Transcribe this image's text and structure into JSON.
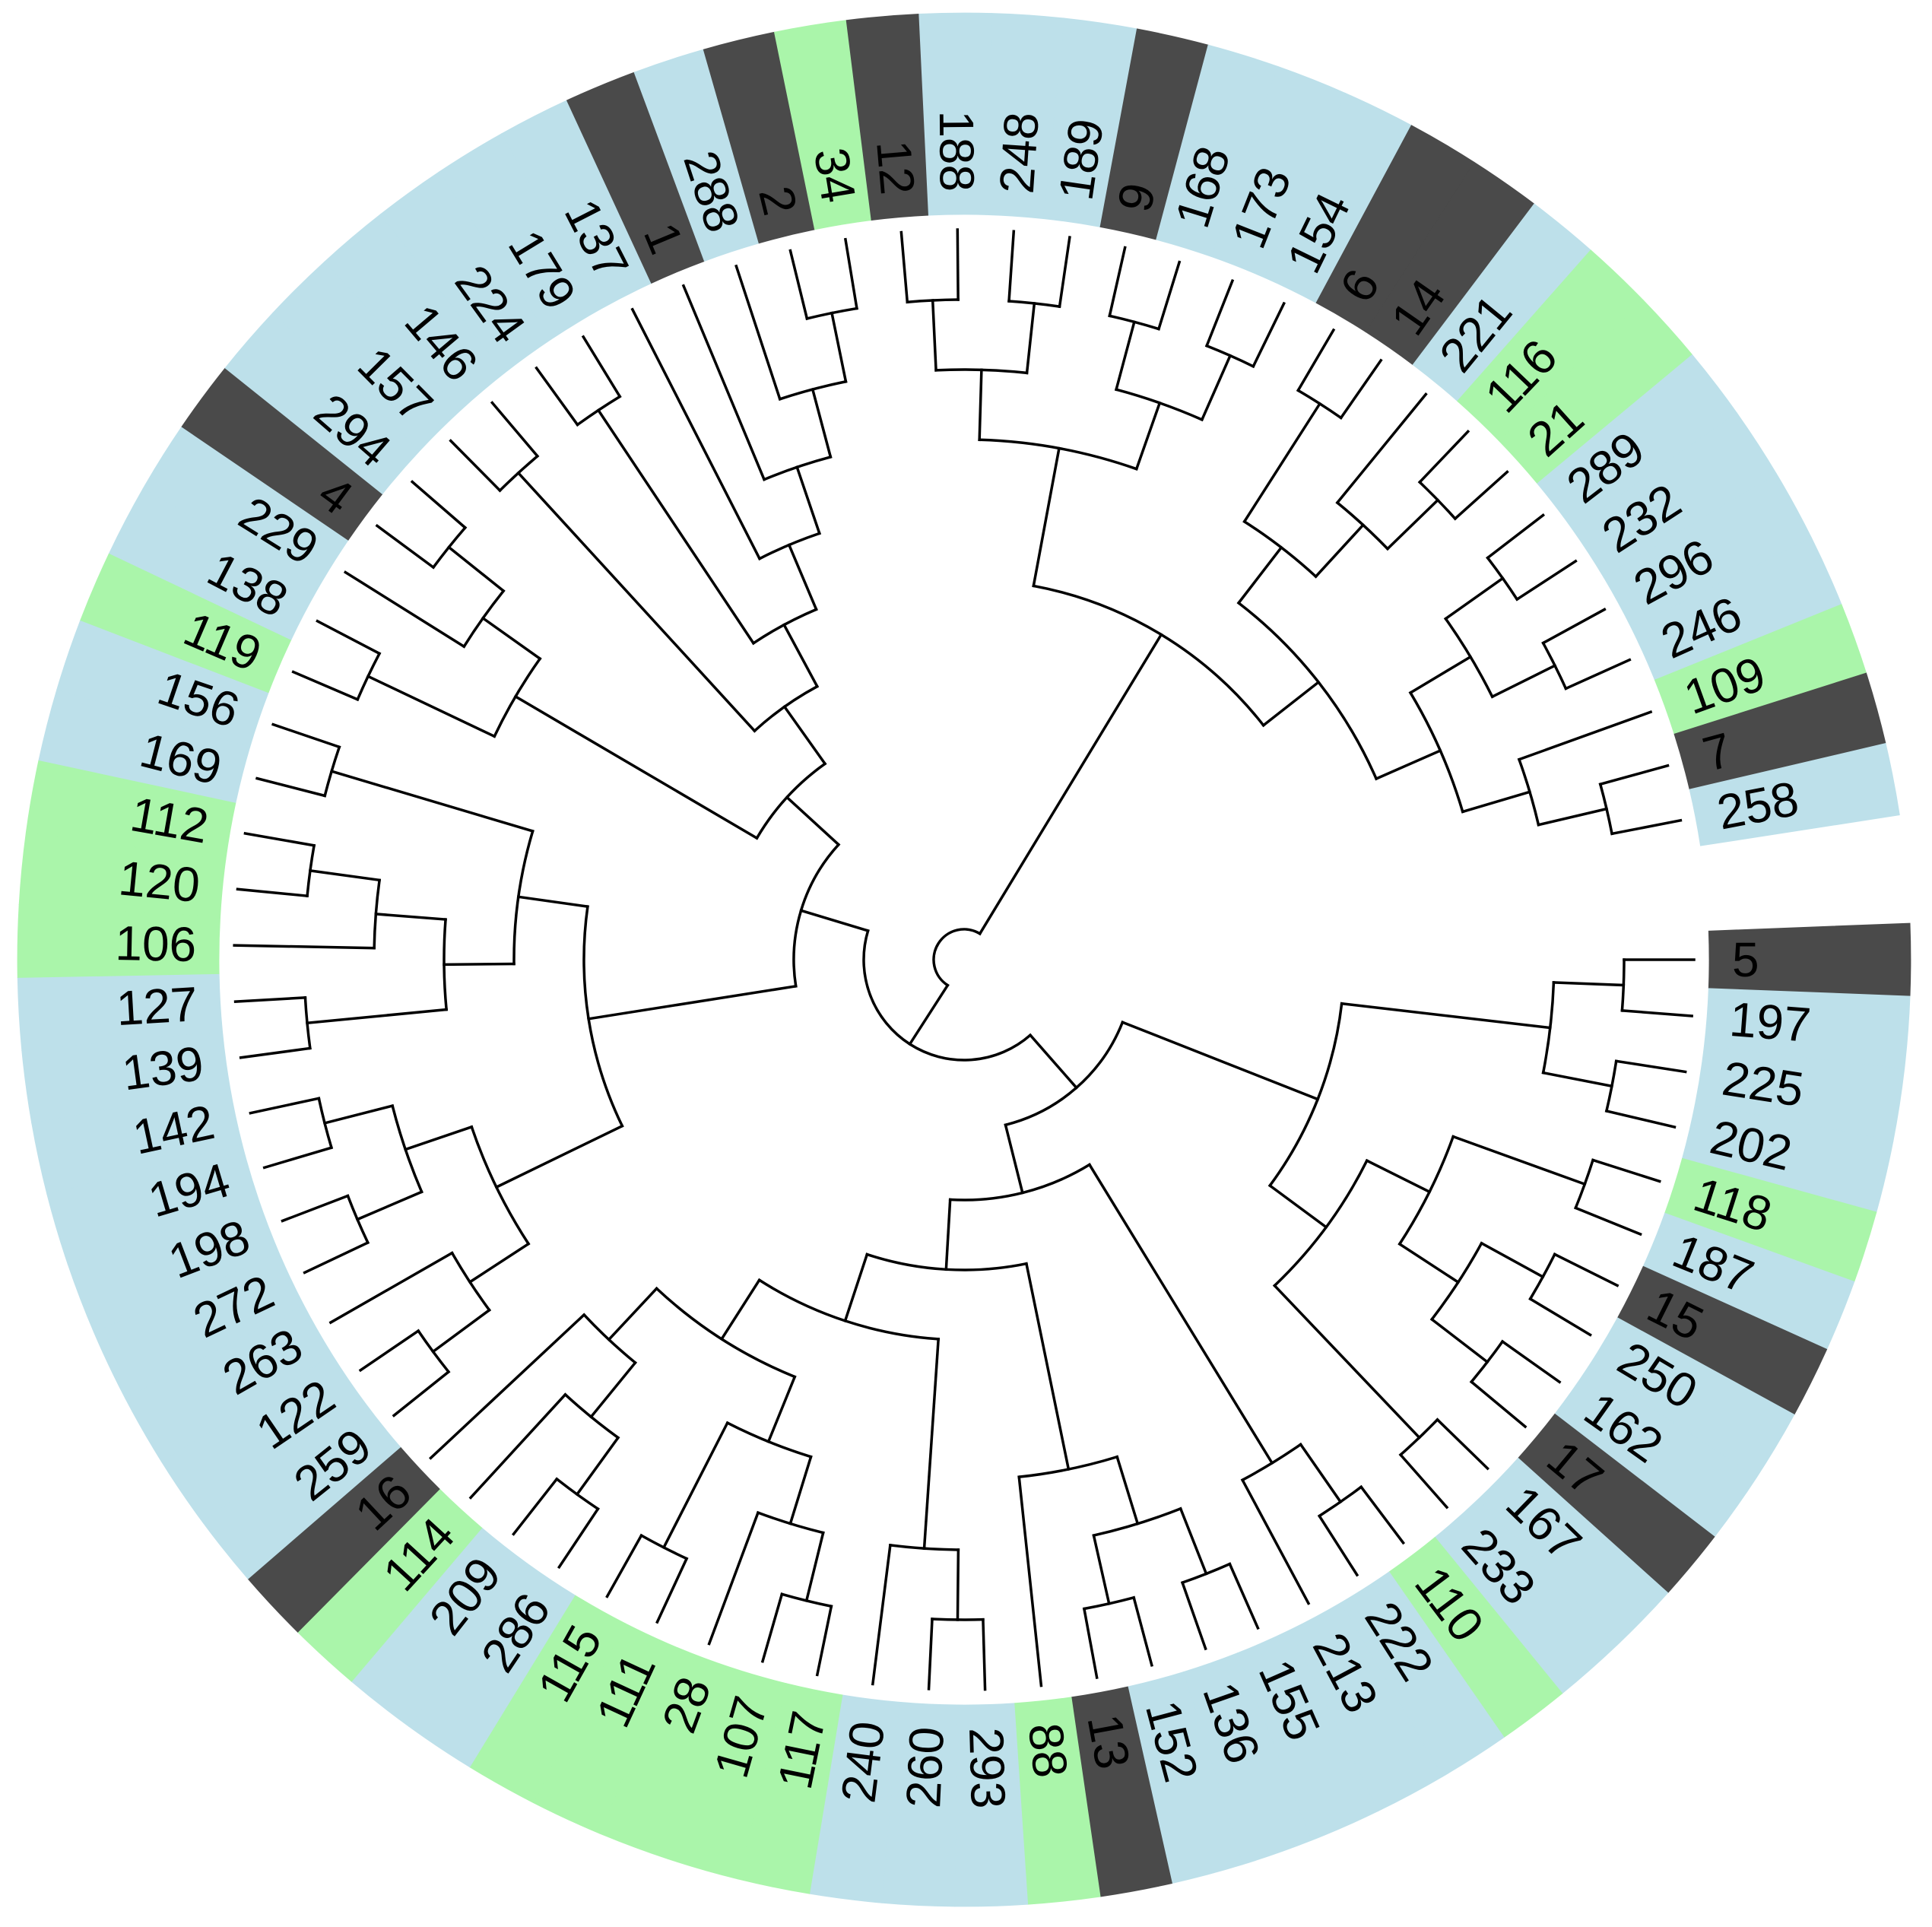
{
  "diagram": {
    "type": "circular-dendrogram",
    "colors": {
      "light": "#bde0ea",
      "green": "#aaf5aa",
      "dark": "#4a4a4a",
      "branch": "#000000",
      "text": "#000000"
    },
    "leaves": [
      {
        "label": "5",
        "group": "dark"
      },
      {
        "label": "197",
        "group": "light"
      },
      {
        "label": "225",
        "group": "light"
      },
      {
        "label": "202",
        "group": "light"
      },
      {
        "label": "118",
        "group": "green"
      },
      {
        "label": "187",
        "group": "light"
      },
      {
        "label": "15",
        "group": "dark"
      },
      {
        "label": "250",
        "group": "light"
      },
      {
        "label": "162",
        "group": "light"
      },
      {
        "label": "17",
        "group": "dark"
      },
      {
        "label": "167",
        "group": "light"
      },
      {
        "label": "233",
        "group": "light"
      },
      {
        "label": "110",
        "group": "green"
      },
      {
        "label": "222",
        "group": "light"
      },
      {
        "label": "213",
        "group": "light"
      },
      {
        "label": "155",
        "group": "light"
      },
      {
        "label": "136",
        "group": "light"
      },
      {
        "label": "152",
        "group": "light"
      },
      {
        "label": "13",
        "group": "dark"
      },
      {
        "label": "88",
        "group": "green"
      },
      {
        "label": "293",
        "group": "light"
      },
      {
        "label": "260",
        "group": "light"
      },
      {
        "label": "240",
        "group": "light"
      },
      {
        "label": "117",
        "group": "green"
      },
      {
        "label": "107",
        "group": "green"
      },
      {
        "label": "28",
        "group": "green"
      },
      {
        "label": "111",
        "group": "green"
      },
      {
        "label": "115",
        "group": "green"
      },
      {
        "label": "286",
        "group": "light"
      },
      {
        "label": "209",
        "group": "light"
      },
      {
        "label": "114",
        "group": "green"
      },
      {
        "label": "16",
        "group": "dark"
      },
      {
        "label": "259",
        "group": "light"
      },
      {
        "label": "122",
        "group": "light"
      },
      {
        "label": "263",
        "group": "light"
      },
      {
        "label": "272",
        "group": "light"
      },
      {
        "label": "198",
        "group": "light"
      },
      {
        "label": "194",
        "group": "light"
      },
      {
        "label": "142",
        "group": "light"
      },
      {
        "label": "139",
        "group": "light"
      },
      {
        "label": "127",
        "group": "light"
      },
      {
        "label": "106",
        "group": "green"
      },
      {
        "label": "120",
        "group": "green"
      },
      {
        "label": "112",
        "group": "green"
      },
      {
        "label": "169",
        "group": "light"
      },
      {
        "label": "156",
        "group": "light"
      },
      {
        "label": "119",
        "group": "green"
      },
      {
        "label": "138",
        "group": "light"
      },
      {
        "label": "229",
        "group": "light"
      },
      {
        "label": "4",
        "group": "dark"
      },
      {
        "label": "294",
        "group": "light"
      },
      {
        "label": "157",
        "group": "light"
      },
      {
        "label": "146",
        "group": "light"
      },
      {
        "label": "224",
        "group": "light"
      },
      {
        "label": "179",
        "group": "light"
      },
      {
        "label": "137",
        "group": "light"
      },
      {
        "label": "1",
        "group": "dark"
      },
      {
        "label": "288",
        "group": "light"
      },
      {
        "label": "2",
        "group": "dark"
      },
      {
        "label": "34",
        "group": "green"
      },
      {
        "label": "12",
        "group": "dark"
      },
      {
        "label": "188",
        "group": "light"
      },
      {
        "label": "248",
        "group": "light"
      },
      {
        "label": "189",
        "group": "light"
      },
      {
        "label": "9",
        "group": "dark"
      },
      {
        "label": "168",
        "group": "light"
      },
      {
        "label": "173",
        "group": "light"
      },
      {
        "label": "154",
        "group": "light"
      },
      {
        "label": "6",
        "group": "dark"
      },
      {
        "label": "14",
        "group": "dark"
      },
      {
        "label": "221",
        "group": "light"
      },
      {
        "label": "116",
        "group": "green"
      },
      {
        "label": "21",
        "group": "green"
      },
      {
        "label": "289",
        "group": "light"
      },
      {
        "label": "232",
        "group": "light"
      },
      {
        "label": "296",
        "group": "light"
      },
      {
        "label": "246",
        "group": "light"
      },
      {
        "label": "109",
        "group": "green"
      },
      {
        "label": "7",
        "group": "dark"
      },
      {
        "label": "258",
        "group": "light"
      }
    ],
    "tree": [
      [
        [
          [
            [
              [
                "5",
                "197"
              ],
              [
                "225",
                "202"
              ]
            ],
            [
              [
                [
                  "118",
                  "187"
                ],
                [
                  [
                    "15",
                    "250"
                  ],
                  [
                    "162",
                    "17"
                  ]
                ]
              ],
              [
                "167",
                "233"
              ]
            ]
          ],
          [
            [
              [
                "110",
                "222"
              ],
              "213"
            ],
            [
              [
                [
                  [
                    "155",
                    "136"
                  ],
                  [
                    "152",
                    "13"
                  ]
                ],
                "88"
              ],
              [
                [
                  [
                    "293",
                    "260"
                  ],
                  "240"
                ],
                [
                  [
                    [
                      [
                        "117",
                        "107"
                      ],
                      "28"
                    ],
                    [
                      "111",
                      "115"
                    ]
                  ],
                  [
                    [
                      [
                        "286",
                        "209"
                      ],
                      "114"
                    ],
                    "16"
                  ]
                ]
              ]
            ]
          ]
        ],
        [
          [
            [
              [
                [
                  "259",
                  "122"
                ],
                "263"
              ],
              [
                [
                  "272",
                  "198"
                ],
                [
                  "194",
                  "142"
                ]
              ]
            ],
            [
              [
                [
                  "139",
                  "127"
                ],
                [
                  "106",
                  [
                    "120",
                    "112"
                  ]
                ]
              ],
              [
                "169",
                "156"
              ]
            ]
          ],
          [
            [
              [
                "119",
                "138"
              ],
              [
                "229",
                [
                  "4",
                  "294"
                ]
              ]
            ],
            [
              [
                "157",
                "146"
              ],
              [
                [
                  "224",
                  "179"
                ],
                [
                  "137",
                  [
                    "1",
                    [
                      "288",
                      [
                        "2",
                        "34"
                      ]
                    ]
                  ]
                ]
              ]
            ]
          ]
        ]
      ],
      [
        [
          [
            [
              "12",
              "188"
            ],
            [
              "248",
              "189"
            ]
          ],
          [
            [
              "9",
              "168"
            ],
            [
              "173",
              "154"
            ]
          ]
        ],
        [
          [
            [
              "6",
              "14"
            ],
            [
              "221",
              [
                "116",
                "21"
              ]
            ]
          ],
          [
            [
              [
                "289",
                "232"
              ],
              [
                "296",
                "246"
              ]
            ],
            [
              "109",
              [
                "7",
                "258"
              ]
            ]
          ]
        ]
      ]
    ]
  }
}
